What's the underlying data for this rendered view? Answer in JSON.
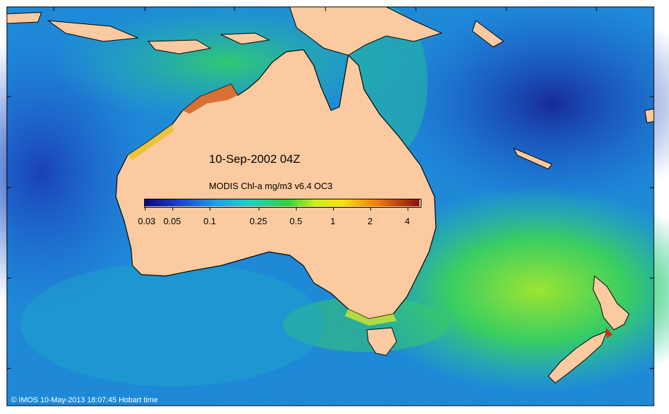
{
  "map": {
    "date_label": "10-Sep-2002 04Z",
    "colorbar_title": "MODIS Chl-a mg/m3 v6.4 OC3",
    "colorbar_ticks": [
      "0.03",
      "0.05",
      "0.1",
      "0.25",
      "0.5",
      "1",
      "2",
      "4"
    ],
    "credit": "© IMOS 10-May-2013 18:07:45 Hobart time",
    "colors": {
      "land": "#fbcaa0",
      "ocean_low": "#1a3fb8",
      "ocean_mid": "#1ea0e0",
      "ocean_green": "#2ecf6a",
      "bloom_yellow": "#e8f020",
      "bloom_red": "#c03010"
    }
  }
}
